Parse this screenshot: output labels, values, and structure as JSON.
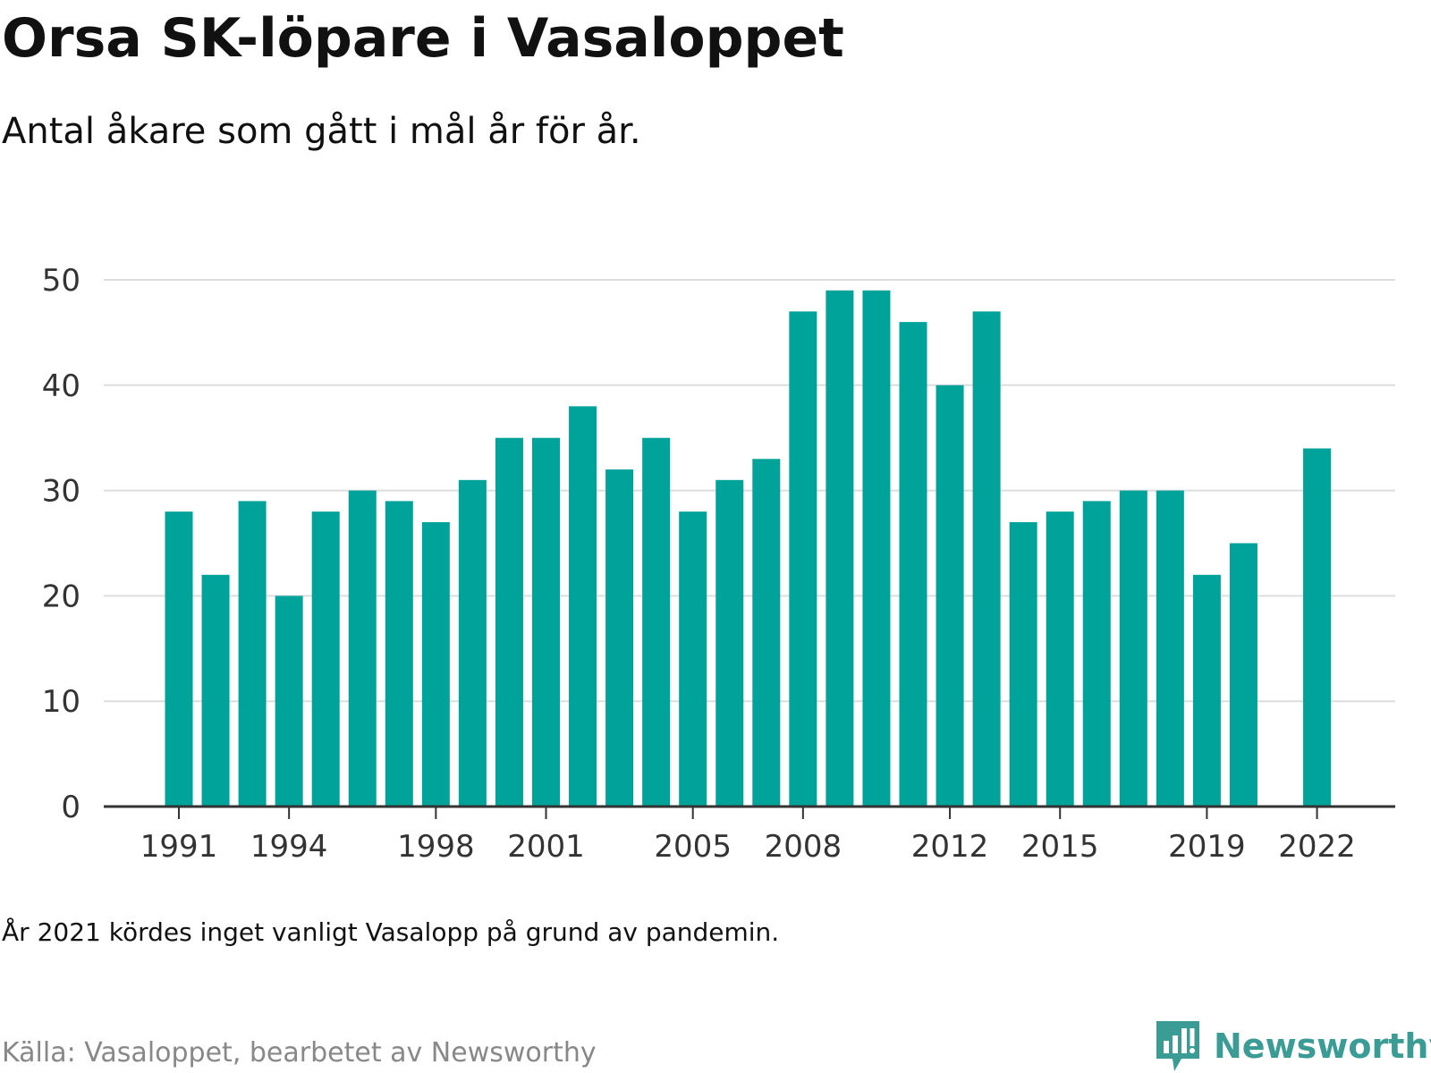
{
  "title": "Orsa SK-löpare i Vasaloppet",
  "subtitle": "Antal åkare som gått i mål år för år.",
  "note": "År 2021 kördes inget vanligt Vasalopp på grund av pandemin.",
  "source": "Källa: Vasaloppet, bearbetet av Newsworthy",
  "brand": {
    "name": "Newsworthy",
    "icon": "newsworthy-logo-icon",
    "color": "#3a9c95"
  },
  "colors": {
    "bar": "#00a39a",
    "grid": "#dddddd",
    "axis": "#333333"
  },
  "chart_data": {
    "type": "bar",
    "categories": [
      1991,
      1992,
      1993,
      1994,
      1995,
      1996,
      1997,
      1998,
      1999,
      2000,
      2001,
      2002,
      2003,
      2004,
      2005,
      2006,
      2007,
      2008,
      2009,
      2010,
      2011,
      2012,
      2013,
      2014,
      2015,
      2016,
      2017,
      2018,
      2019,
      2020,
      2021,
      2022
    ],
    "values": [
      28,
      22,
      29,
      20,
      28,
      30,
      29,
      27,
      31,
      35,
      35,
      38,
      32,
      35,
      28,
      31,
      33,
      47,
      49,
      49,
      46,
      40,
      47,
      27,
      28,
      29,
      30,
      30,
      22,
      25,
      null,
      34
    ],
    "x_tick_labels": [
      "1991",
      "1994",
      "1998",
      "2001",
      "2005",
      "2008",
      "2012",
      "2015",
      "2019",
      "2022"
    ],
    "y_ticks": [
      0,
      10,
      20,
      30,
      40,
      50
    ],
    "ylim": [
      0,
      50
    ],
    "grid": true,
    "xlabel": "",
    "ylabel": ""
  }
}
